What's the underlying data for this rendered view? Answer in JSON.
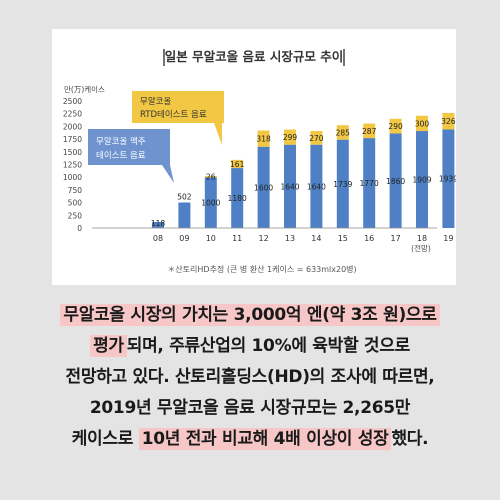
{
  "chart_data": {
    "type": "bar",
    "title": "일본 무알코올 음료 시장규모 추이",
    "ylabel": "만(万)케이스",
    "ylim": [
      0,
      2500
    ],
    "yticks": [
      "0",
      "250",
      "500",
      "750",
      "1000",
      "1250",
      "1500",
      "1750",
      "2000",
      "2250",
      "2500"
    ],
    "categories": [
      "08",
      "09",
      "10",
      "11",
      "12",
      "13",
      "14",
      "15",
      "16",
      "17",
      "18",
      "19"
    ],
    "category_note": "(전망)",
    "stacked": true,
    "series": [
      {
        "name": "무알코올 맥주 테이스트 음료",
        "color": "#4f80c6",
        "values": [
          118,
          502,
          1000,
          1180,
          1600,
          1640,
          1640,
          1739,
          1770,
          1860,
          1909,
          1939
        ]
      },
      {
        "name": "무알코올 RTD테이스트 음료",
        "color": "#f2c744",
        "values": [
          0,
          0,
          26,
          161,
          318,
          299,
          270,
          285,
          287,
          290,
          300,
          326
        ]
      }
    ],
    "bottom_labels": [
      "118",
      "502",
      "1000",
      "1180",
      "1600",
      "1640",
      "1640",
      "1739",
      "1770",
      "1860",
      "1909",
      "1939"
    ],
    "top_labels": [
      "",
      "",
      "26",
      "161",
      "318",
      "299",
      "270",
      "285",
      "287",
      "290",
      "300",
      "326"
    ],
    "footnote": "＊산토리HD추정 (큰 병 환산 1케이스 = 633mlx20병)",
    "grid": false
  },
  "caption": {
    "line1": "무알코올 시장의 가치는 3,000억 엔(약 3조 원)으로",
    "line2_hl": "평가",
    "line2_rest": "되며, 주류산업의 10%에 육박할 것으로",
    "line3": "전망하고 있다. 산토리홀딩스(HD)의 조사에 따르면,",
    "line4": "2019년 무알코올 음료 시장규모는 2,265만",
    "line5_pre": "케이스로 ",
    "line5_hl": "10년 전과 비교해 4배 이상이 성장",
    "line5_post": "했다."
  }
}
